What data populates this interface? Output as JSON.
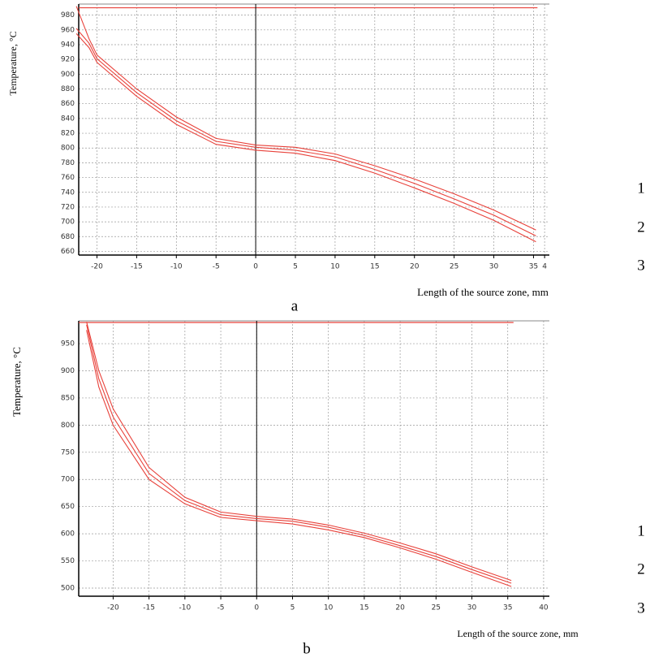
{
  "chart_data": [
    {
      "type": "line",
      "panel_label": "a",
      "ylabel": "Temperature, °C",
      "xlabel": "Length of the source zone, mm",
      "x": [
        -22.6,
        -21,
        -20,
        -15,
        -10,
        -5,
        0,
        5,
        10,
        15,
        20,
        25,
        30,
        35.3
      ],
      "series": [
        {
          "name": "1",
          "color": "#e8413a",
          "values": [
            992,
            948,
            926,
            880,
            842,
            813,
            804,
            801,
            792,
            776,
            758,
            738,
            716,
            689
          ]
        },
        {
          "name": "2",
          "color": "#e8413a",
          "values": [
            962,
            942,
            921,
            875,
            837,
            809,
            801,
            797,
            788,
            771,
            752,
            731,
            709,
            681
          ]
        },
        {
          "name": "3",
          "color": "#e8413a",
          "values": [
            955,
            936,
            916,
            870,
            832,
            805,
            797,
            793,
            783,
            766,
            746,
            725,
            702,
            673
          ]
        }
      ],
      "xlim": [
        -22.3,
        37
      ],
      "ylim": [
        655,
        995
      ],
      "xticks": [
        -20,
        -15,
        -10,
        -5,
        0,
        5,
        10,
        15,
        20,
        25,
        30,
        35,
        {
          "value": 36.4,
          "label": "4"
        }
      ],
      "yticks": [
        660,
        680,
        700,
        720,
        740,
        760,
        780,
        800,
        820,
        840,
        860,
        880,
        900,
        920,
        940,
        960,
        980
      ],
      "grid": true,
      "legend": "right",
      "reference_lines": [
        {
          "axis": "y",
          "value": 990,
          "to": 35.5,
          "color": "#e8413a"
        },
        {
          "axis": "x",
          "value": 0,
          "color": "#000000"
        }
      ]
    },
    {
      "type": "line",
      "panel_label": "b",
      "ylabel": "Temperature, °C",
      "xlabel": "Length of the source zone, mm",
      "x": [
        -23.7,
        -22,
        -20,
        -15,
        -10,
        -5,
        0,
        5,
        10,
        15,
        20,
        25,
        30,
        35.5
      ],
      "series": [
        {
          "name": "1",
          "color": "#e8413a",
          "values": [
            990,
            900,
            830,
            722,
            667,
            640,
            632,
            627,
            616,
            601,
            583,
            563,
            539,
            514
          ]
        },
        {
          "name": "2",
          "color": "#e8413a",
          "values": [
            985,
            885,
            815,
            711,
            661,
            635,
            628,
            623,
            612,
            597,
            578,
            558,
            534,
            509
          ]
        },
        {
          "name": "3",
          "color": "#e8413a",
          "values": [
            975,
            870,
            800,
            700,
            655,
            630,
            624,
            618,
            607,
            593,
            574,
            553,
            529,
            503
          ]
        }
      ],
      "xlim": [
        -24.8,
        40.8
      ],
      "ylim": [
        485,
        992
      ],
      "xticks": [
        -20,
        -15,
        -10,
        -5,
        0,
        5,
        10,
        15,
        20,
        25,
        30,
        35,
        40
      ],
      "yticks": [
        500,
        550,
        600,
        650,
        700,
        750,
        800,
        850,
        900,
        950
      ],
      "grid": true,
      "legend": "right",
      "reference_lines": [
        {
          "axis": "y",
          "value": 989,
          "to": 35.8,
          "color": "#e8413a"
        },
        {
          "axis": "x",
          "value": 0,
          "color": "#000000"
        }
      ]
    }
  ]
}
